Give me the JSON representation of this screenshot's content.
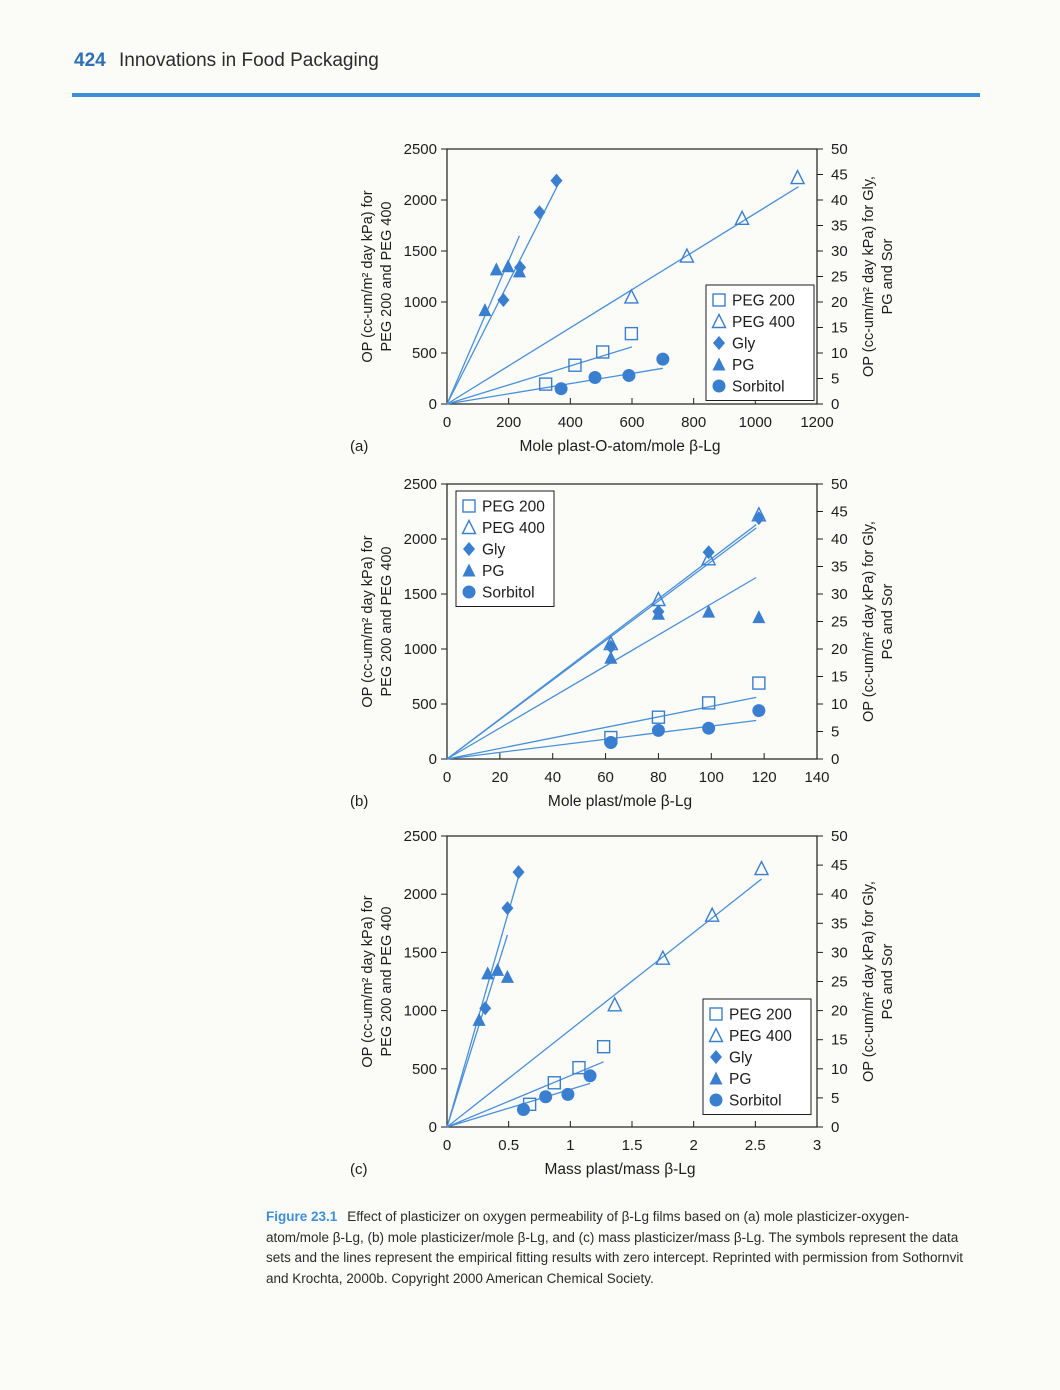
{
  "page": {
    "number": "424",
    "running_title": "Innovations in Food Packaging"
  },
  "caption": {
    "label": "Figure 23.1",
    "text": "Effect of plasticizer on oxygen permeability of β-Lg films based on (a) mole plasticizer-oxygen-atom/mole β-Lg, (b) mole plasticizer/mole β-Lg, and (c) mass plasticizer/mass β-Lg. The symbols represent the data sets and the lines represent the empirical fitting results with zero intercept. Reprinted with permission from Sothornvit and Krochta, 2000b. Copyright 2000 American Chemical Society."
  },
  "colors": {
    "accent": "#3f8fd8",
    "series": "#3a7fcf",
    "fit_line": "#4a90d9"
  },
  "chart_data": [
    {
      "type": "scatter",
      "panel_label": "(a)",
      "xlabel": "Mole plast-O-atom/mole β-Lg",
      "ylabel_left": [
        "OP (cc-um/m² day kPa) for",
        "PEG 200 and PEG 400"
      ],
      "ylabel_right": [
        "OP (cc-um/m² day kPa) for Gly,",
        "PG and Sor"
      ],
      "xlim": [
        0,
        1200
      ],
      "xticks": [
        "0",
        "200",
        "400",
        "600",
        "800",
        "1000",
        "1200"
      ],
      "ylim_left": [
        0,
        2500
      ],
      "yticks_left": [
        "0",
        "500",
        "1000",
        "1500",
        "2000",
        "2500"
      ],
      "ylim_right": [
        0,
        50
      ],
      "yticks_right": [
        "0",
        "5",
        "10",
        "15",
        "20",
        "25",
        "30",
        "35",
        "40",
        "45",
        "50"
      ],
      "legend": {
        "position": "bottom-right",
        "entries": [
          "PEG 200",
          "PEG 400",
          "Gly",
          "PG",
          "Sorbitol"
        ]
      },
      "series": [
        {
          "name": "PEG 200",
          "marker": "square-open",
          "axis": "left",
          "x": [
            320,
            415,
            505,
            598
          ],
          "y": [
            195,
            380,
            510,
            690
          ]
        },
        {
          "name": "PEG 400",
          "marker": "triangle-open",
          "axis": "left",
          "x": [
            598,
            778,
            957,
            1137
          ],
          "y": [
            1050,
            1450,
            1820,
            2220
          ]
        },
        {
          "name": "Gly",
          "marker": "diamond",
          "axis": "right",
          "x": [
            183,
            300,
            355,
            237
          ],
          "y": [
            20.4,
            37.6,
            43.8,
            26.8
          ]
        },
        {
          "name": "PG",
          "marker": "triangle",
          "axis": "right",
          "x": [
            123,
            160,
            198,
            235
          ],
          "y": [
            18.4,
            26.4,
            27.0,
            26.0
          ]
        },
        {
          "name": "Sorbitol",
          "marker": "circle",
          "axis": "right",
          "x": [
            370,
            480,
            590,
            700
          ],
          "y": [
            3.0,
            5.2,
            5.6,
            8.8
          ]
        }
      ],
      "fit_lines": [
        {
          "series": "PEG 200",
          "axis": "left",
          "x_end": 600,
          "y_end": 560
        },
        {
          "series": "PEG 400",
          "axis": "left",
          "x_end": 1140,
          "y_end": 2130
        },
        {
          "series": "Gly",
          "axis": "right",
          "x_end": 360,
          "y_end": 43
        },
        {
          "series": "PG",
          "axis": "right",
          "x_end": 235,
          "y_end": 33
        },
        {
          "series": "Sorbitol",
          "axis": "right",
          "x_end": 700,
          "y_end": 7.0
        }
      ]
    },
    {
      "type": "scatter",
      "panel_label": "(b)",
      "xlabel": "Mole plast/mole β-Lg",
      "ylabel_left": [
        "OP (cc-um/m² day kPa) for",
        "PEG 200 and PEG 400"
      ],
      "ylabel_right": [
        "OP (cc-um/m² day kPa) for Gly,",
        "PG and Sor"
      ],
      "xlim": [
        0,
        140
      ],
      "xticks": [
        "0",
        "20",
        "40",
        "60",
        "80",
        "100",
        "120",
        "140"
      ],
      "ylim_left": [
        0,
        2500
      ],
      "yticks_left": [
        "0",
        "500",
        "1000",
        "1500",
        "2000",
        "2500"
      ],
      "ylim_right": [
        0,
        50
      ],
      "yticks_right": [
        "0",
        "5",
        "10",
        "15",
        "20",
        "25",
        "30",
        "35",
        "40",
        "45",
        "50"
      ],
      "legend": {
        "position": "top-left",
        "entries": [
          "PEG 200",
          "PEG 400",
          "Gly",
          "PG",
          "Sorbitol"
        ]
      },
      "series": [
        {
          "name": "PEG 200",
          "marker": "square-open",
          "axis": "left",
          "x": [
            62,
            80,
            99,
            118
          ],
          "y": [
            195,
            380,
            510,
            690
          ]
        },
        {
          "name": "PEG 400",
          "marker": "triangle-open",
          "axis": "left",
          "x": [
            62,
            80,
            99,
            118
          ],
          "y": [
            1050,
            1450,
            1820,
            2220
          ]
        },
        {
          "name": "Gly",
          "marker": "diamond",
          "axis": "right",
          "x": [
            62,
            80,
            99,
            118
          ],
          "y": [
            20.4,
            26.8,
            37.6,
            43.8
          ]
        },
        {
          "name": "PG",
          "marker": "triangle",
          "axis": "right",
          "x": [
            62,
            80,
            99,
            118
          ],
          "y": [
            18.4,
            26.4,
            26.8,
            25.8
          ]
        },
        {
          "name": "Sorbitol",
          "marker": "circle",
          "axis": "right",
          "x": [
            62,
            80,
            99,
            118
          ],
          "y": [
            3.0,
            5.2,
            5.6,
            8.8
          ]
        }
      ],
      "fit_lines": [
        {
          "series": "PEG 200",
          "axis": "left",
          "x_end": 117,
          "y_end": 560
        },
        {
          "series": "PEG 400",
          "axis": "left",
          "x_end": 117,
          "y_end": 2130
        },
        {
          "series": "Gly",
          "axis": "right",
          "x_end": 117,
          "y_end": 42
        },
        {
          "series": "PG",
          "axis": "right",
          "x_end": 117,
          "y_end": 33
        },
        {
          "series": "Sorbitol",
          "axis": "right",
          "x_end": 117,
          "y_end": 7.0
        }
      ]
    },
    {
      "type": "scatter",
      "panel_label": "(c)",
      "xlabel": "Mass plast/mass β-Lg",
      "ylabel_left": [
        "OP (cc-um/m² day kPa) for",
        "PEG 200 and PEG 400"
      ],
      "ylabel_right": [
        "OP (cc-um/m² day kPa) for Gly,",
        "PG and Sor"
      ],
      "xlim": [
        0,
        3
      ],
      "xticks": [
        "0",
        "0.5",
        "1",
        "1.5",
        "2",
        "2.5",
        "3"
      ],
      "ylim_left": [
        0,
        2500
      ],
      "yticks_left": [
        "0",
        "500",
        "1000",
        "1500",
        "2000",
        "2500"
      ],
      "ylim_right": [
        0,
        50
      ],
      "yticks_right": [
        "0",
        "5",
        "10",
        "15",
        "20",
        "25",
        "30",
        "35",
        "40",
        "45",
        "50"
      ],
      "legend": {
        "position": "bottom-right",
        "entries": [
          "PEG 200",
          "PEG 400",
          "Gly",
          "PG",
          "Sorbitol"
        ]
      },
      "series": [
        {
          "name": "PEG 200",
          "marker": "square-open",
          "axis": "left",
          "x": [
            0.67,
            0.87,
            1.07,
            1.27
          ],
          "y": [
            195,
            380,
            510,
            690
          ]
        },
        {
          "name": "PEG 400",
          "marker": "triangle-open",
          "axis": "left",
          "x": [
            1.36,
            1.75,
            2.15,
            2.55
          ],
          "y": [
            1050,
            1450,
            1820,
            2220
          ]
        },
        {
          "name": "Gly",
          "marker": "diamond",
          "axis": "right",
          "x": [
            0.31,
            0.49,
            0.58
          ],
          "y": [
            20.4,
            37.6,
            43.8
          ]
        },
        {
          "name": "PG",
          "marker": "triangle",
          "axis": "right",
          "x": [
            0.26,
            0.33,
            0.41,
            0.49
          ],
          "y": [
            18.4,
            26.4,
            27.0,
            25.8
          ]
        },
        {
          "name": "Sorbitol",
          "marker": "circle",
          "axis": "right",
          "x": [
            0.62,
            0.8,
            0.98,
            1.16
          ],
          "y": [
            3.0,
            5.2,
            5.6,
            8.8
          ]
        }
      ],
      "fit_lines": [
        {
          "series": "PEG 200",
          "axis": "left",
          "x_end": 1.27,
          "y_end": 560
        },
        {
          "series": "PEG 400",
          "axis": "left",
          "x_end": 2.55,
          "y_end": 2130
        },
        {
          "series": "Gly",
          "axis": "right",
          "x_end": 0.58,
          "y_end": 43
        },
        {
          "series": "PG",
          "axis": "right",
          "x_end": 0.49,
          "y_end": 33
        },
        {
          "series": "Sorbitol",
          "axis": "right",
          "x_end": 1.16,
          "y_end": 7.5
        }
      ]
    }
  ]
}
